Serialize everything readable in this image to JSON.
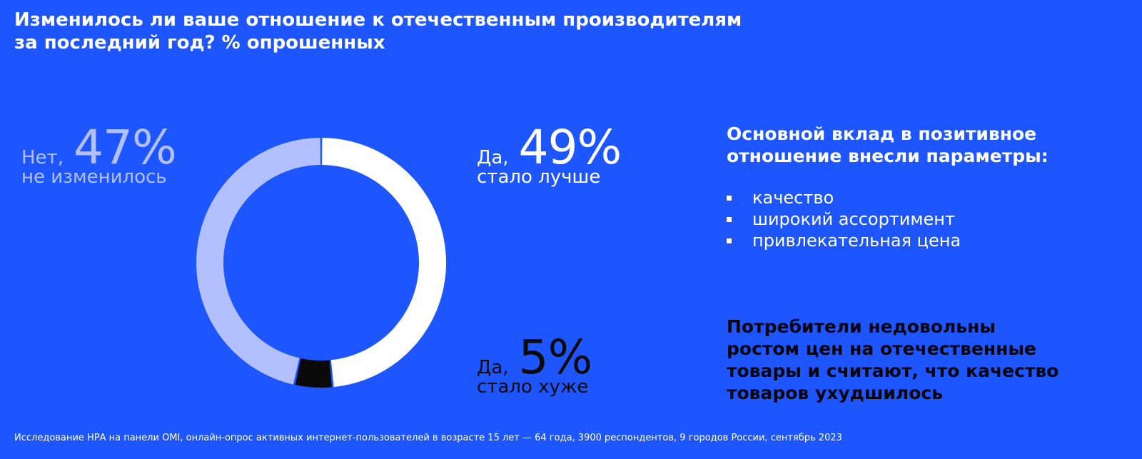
{
  "title": {
    "line1": "Изменилось ли ваше отношение к отечественным производителям",
    "line2": "за последний год? % опрошенных"
  },
  "chart_data": {
    "type": "pie",
    "title": "Изменилось ли ваше отношение к отечественным производителям за последний год? % опрошенных",
    "slices": [
      {
        "label": "Да, стало лучше",
        "value": 49,
        "color": "#ffffff"
      },
      {
        "label": "Да, стало хуже",
        "value": 5,
        "color": "#0a0a0a"
      },
      {
        "label": "Нет, не изменилось",
        "value": 47,
        "color": "#b3c0ff"
      }
    ]
  },
  "labels": {
    "no": {
      "prefix": "Нет,",
      "percent": "47%",
      "caption": "не изменилось"
    },
    "better": {
      "prefix": "Да,",
      "percent": "49%",
      "caption": "стало лучше"
    },
    "worse": {
      "prefix": "Да,",
      "percent": "5%",
      "caption": "стало хуже"
    }
  },
  "panel": {
    "heading_line1": "Основной вклад в позитивное",
    "heading_line2": "отношение внесли параметры:",
    "items": [
      "качество",
      "широкий ассортимент",
      "привлекательная цена"
    ]
  },
  "conclusion": {
    "line1": "Потребители недовольны",
    "line2": "ростом цен на отечественные",
    "line3": "товары и считают, что качество",
    "line4": "товаров ухудшилось"
  },
  "footnote": "Исследование НРА на панели OMI, онлайн-опрос активных интернет-пользователей в возрасте 15 лет — 64 года, 3900 респондентов, 9 городов России, сентябрь 2023",
  "colors": {
    "background": "#1d56fe",
    "better": "#ffffff",
    "worse": "#0a0a0a",
    "no_change": "#b3c0ff"
  }
}
